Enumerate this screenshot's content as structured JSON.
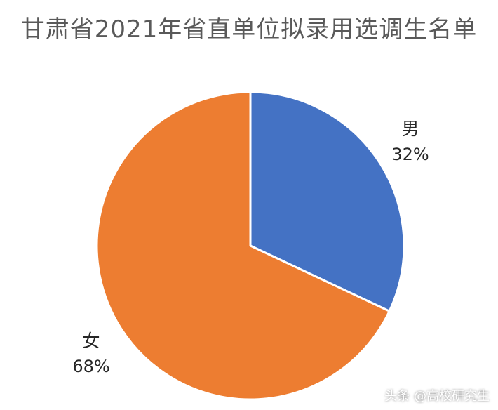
{
  "chart_data": {
    "type": "pie",
    "title": "甘肃省2021年省直单位拟录用选调生名单",
    "categories": [
      "男",
      "女"
    ],
    "values": [
      32,
      68
    ],
    "value_labels": [
      "32%",
      "68%"
    ],
    "colors": [
      "#4472C4",
      "#ED7D31"
    ],
    "legend": "none"
  },
  "watermark": "头条 @高校研究生"
}
